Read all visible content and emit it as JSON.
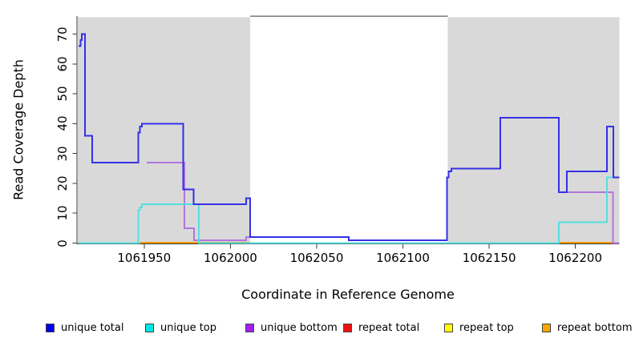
{
  "chart_data": {
    "type": "line",
    "line_style": "step",
    "title": "",
    "xlabel": "Coordinate in Reference Genome",
    "ylabel": "Read Coverage Depth",
    "xlim": [
      1061911.5,
      1062225.5
    ],
    "ylim": [
      0,
      76.05
    ],
    "x_ticks": [
      1061950,
      1062000,
      1062050,
      1062100,
      1062150,
      1062200
    ],
    "y_ticks": [
      0,
      10,
      20,
      30,
      40,
      50,
      60,
      70
    ],
    "grid": false,
    "legend_position": "bottom",
    "shading": {
      "color": "#d9d9d9",
      "regions": [
        [
          1061911.5,
          1062011.5
        ],
        [
          1062126.0,
          1062225.5
        ]
      ]
    },
    "zero_baseline_color": "#8fcf8f",
    "axis_color": "#3a3a3a",
    "series": [
      {
        "name": "unique total",
        "legend_color": "#0000ee",
        "line_color": "#3530e6",
        "steps": [
          [
            1061912,
            66
          ],
          [
            1061913.2,
            68
          ],
          [
            1061913.9,
            70
          ],
          [
            1061915.7,
            36
          ],
          [
            1061919.9,
            27
          ],
          [
            1061946.7,
            37
          ],
          [
            1061947.6,
            39
          ],
          [
            1061948.6,
            40
          ],
          [
            1061972.6,
            18
          ],
          [
            1061978.7,
            13
          ],
          [
            1062009.2,
            15
          ],
          [
            1062011.5,
            2
          ],
          [
            1062068.6,
            1
          ],
          [
            1062125.5,
            22
          ],
          [
            1062126.5,
            24
          ],
          [
            1062128,
            25
          ],
          [
            1062156.5,
            42
          ],
          [
            1062190.4,
            17
          ],
          [
            1062195,
            24
          ],
          [
            1062218.2,
            39
          ],
          [
            1062222,
            22
          ],
          [
            1062225.5,
            22
          ]
        ]
      },
      {
        "name": "unique top",
        "legend_color": "#00e5e5",
        "line_color": "#55dfdf",
        "steps": [
          [
            1061912,
            0
          ],
          [
            1061946.7,
            11
          ],
          [
            1061947.6,
            12
          ],
          [
            1061948.6,
            13
          ],
          [
            1061981.6,
            0
          ],
          [
            1062190.4,
            7
          ],
          [
            1062218.2,
            22
          ],
          [
            1062225.5,
            22
          ]
        ]
      },
      {
        "name": "unique bottom",
        "legend_color": "#a020f0",
        "line_color": "#b275dd",
        "steps": [
          [
            1061951.4,
            27
          ],
          [
            1061973.3,
            5
          ],
          [
            1061979,
            1
          ],
          [
            1062009.2,
            2
          ],
          [
            1062068.6,
            1
          ],
          [
            1062125.5,
            22
          ],
          [
            1062126.5,
            24
          ],
          [
            1062128,
            25
          ],
          [
            1062156.5,
            42
          ],
          [
            1062190.4,
            17
          ],
          [
            1062221.8,
            0
          ],
          [
            1062225.5,
            0
          ]
        ]
      },
      {
        "name": "repeat total",
        "legend_color": "#ee1111",
        "line_color": "#ee1111",
        "steps": [
          [
            1061912,
            0
          ],
          [
            1062225.5,
            0
          ]
        ]
      },
      {
        "name": "repeat top",
        "legend_color": "#ffff00",
        "line_color": "#eeee00",
        "steps": [
          [
            1061912,
            0
          ],
          [
            1062225.5,
            0
          ]
        ]
      },
      {
        "name": "repeat bottom",
        "legend_color": "#ffa500",
        "line_color": "#ff9900",
        "steps": [
          [
            1061912,
            0
          ],
          [
            1062225.5,
            0
          ]
        ],
        "visible_zero_segments": [
          [
            1061947.9,
            1062011.5
          ],
          [
            1062190.4,
            1062222
          ]
        ]
      }
    ]
  }
}
